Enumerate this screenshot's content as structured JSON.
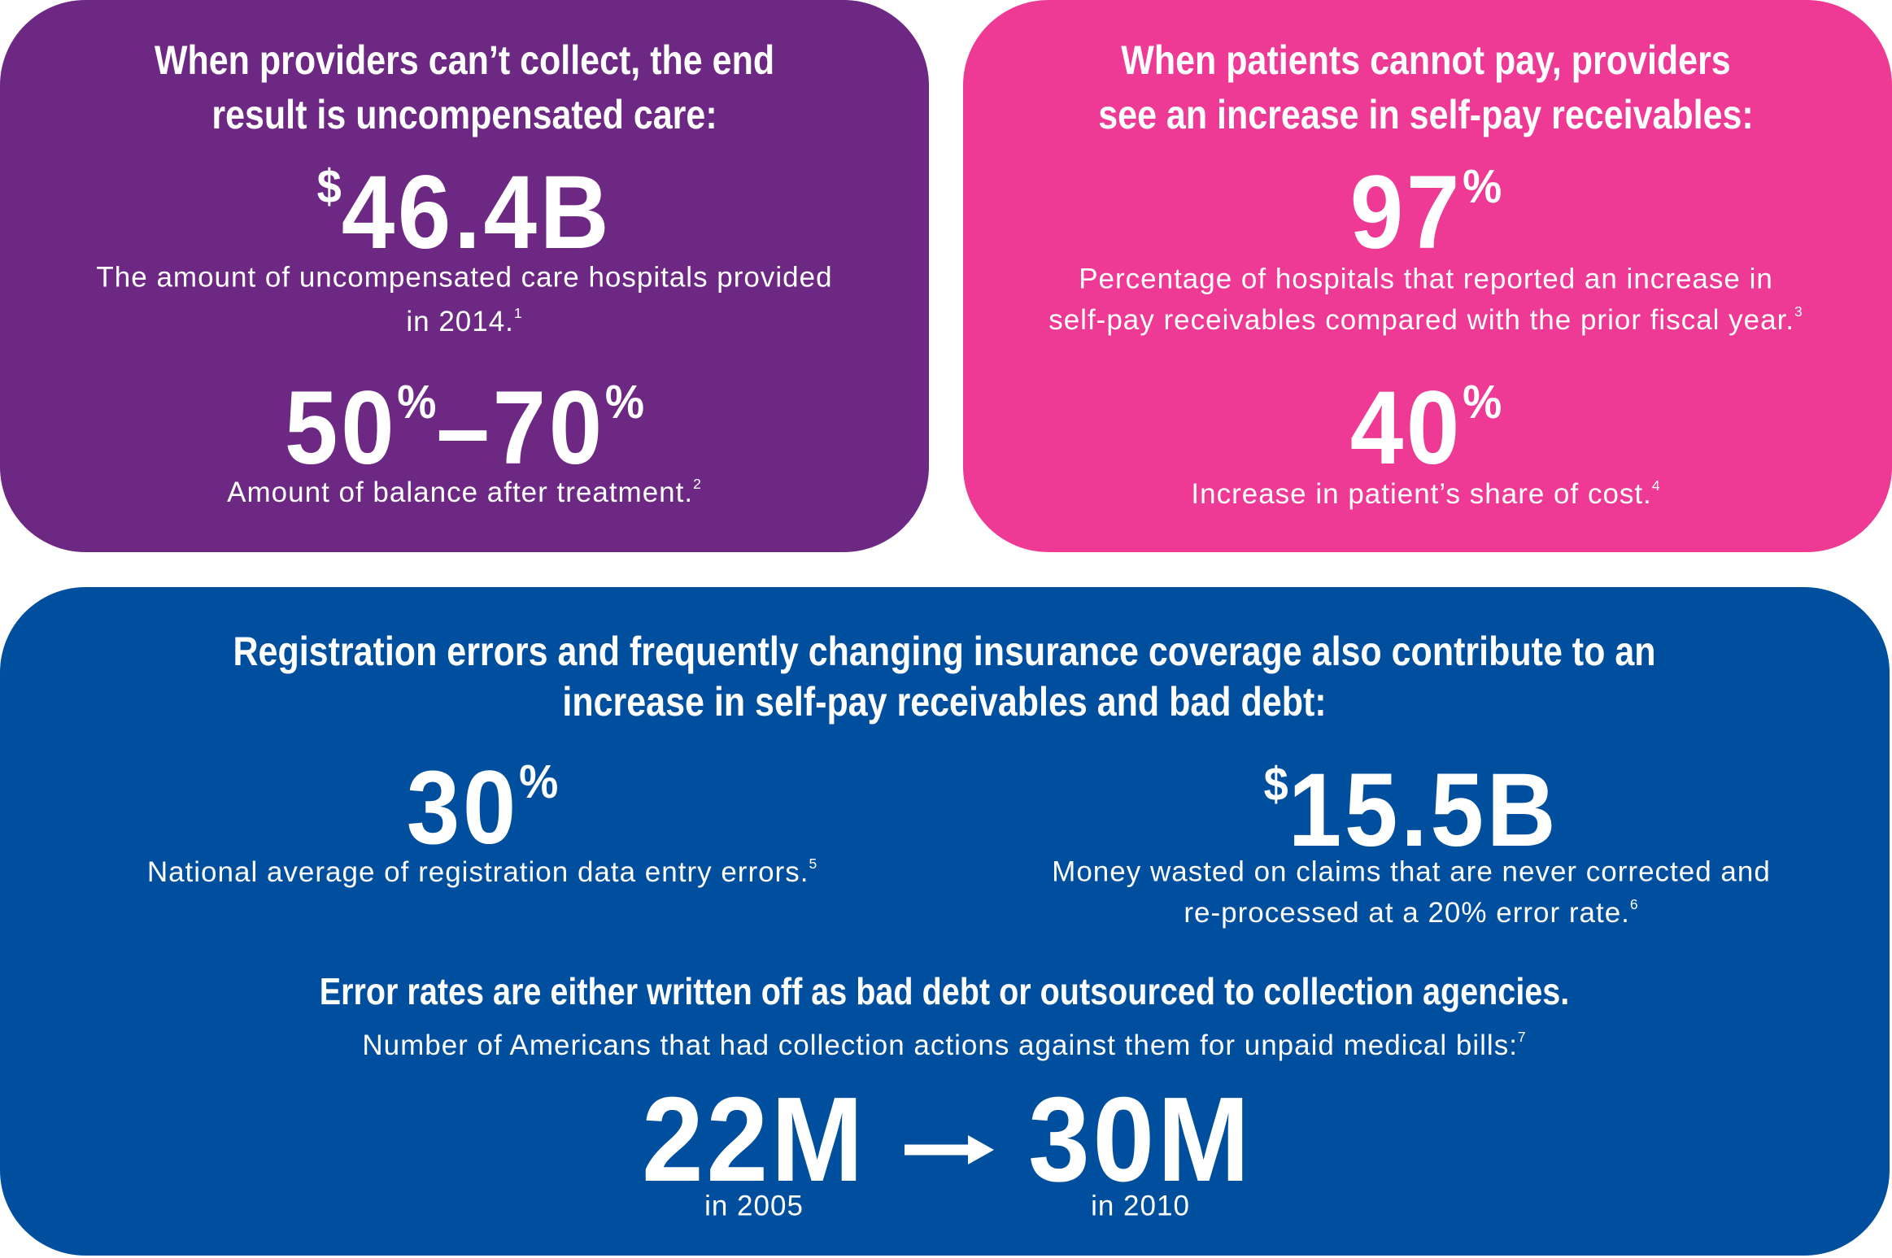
{
  "panels": [
    {
      "heading": [
        "When providers can’t collect, the end",
        "result is uncompensated care:"
      ],
      "stats": [
        {
          "figure": [
            {
              "text": "$",
              "sup": true
            },
            {
              "text": "46.4B",
              "sup": false
            }
          ],
          "description": [
            "The amount of uncompensated care hospitals provided",
            "in 2014."
          ],
          "note": "1"
        },
        {
          "figure": [
            {
              "text": "50",
              "sup": false
            },
            {
              "text": "%",
              "sup": true
            },
            {
              "text": "–70",
              "sup": false
            },
            {
              "text": "%",
              "sup": true
            }
          ],
          "description": [
            "Amount of balance after treatment."
          ],
          "note": "2"
        }
      ]
    },
    {
      "heading": [
        "When patients cannot pay, providers",
        "see an increase in self-pay receivables:"
      ],
      "stats": [
        {
          "figure": [
            {
              "text": "97",
              "sup": false
            },
            {
              "text": "%",
              "sup": true
            }
          ],
          "description": [
            "Percentage of hospitals that reported an increase in",
            "self-pay receivables compared with the prior fiscal year."
          ],
          "note": "3"
        },
        {
          "figure": [
            {
              "text": "40",
              "sup": false
            },
            {
              "text": "%",
              "sup": true
            }
          ],
          "description": [
            "Increase in patient’s share of cost."
          ],
          "note": "4"
        }
      ]
    },
    {
      "heading": [
        "Registration errors and frequently changing insurance coverage also contribute to an",
        "increase in self-pay receivables and bad debt:"
      ],
      "stats": [
        {
          "figure": [
            {
              "text": "30",
              "sup": false
            },
            {
              "text": "%",
              "sup": true
            }
          ],
          "description": [
            "National average of registration data entry errors."
          ],
          "note": "5"
        },
        {
          "figure": [
            {
              "text": "$",
              "sup": true
            },
            {
              "text": "15.5B",
              "sup": false
            }
          ],
          "description": [
            "Money wasted on claims that are never corrected and",
            "re-processed at a 20% error rate."
          ],
          "note": "6"
        }
      ],
      "subheading": "Error rates are either written off as bad debt or outsourced to collection agencies.",
      "caption": "Number of Americans that had collection actions against them for unpaid medical bills:",
      "caption_note": "7",
      "comparison": [
        {
          "figure": "22M",
          "label": "in 2005"
        },
        {
          "figure": "30M",
          "label": "in 2010"
        }
      ]
    }
  ]
}
